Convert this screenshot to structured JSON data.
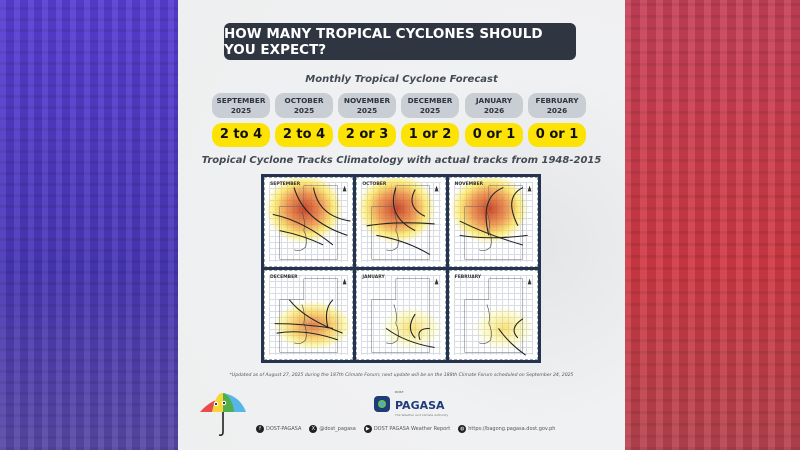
{
  "title": "HOW MANY TROPICAL CYCLONES SHOULD YOU EXPECT?",
  "forecast_heading": "Monthly Tropical Cyclone Forecast",
  "forecast": [
    {
      "month": "SEPTEMBER",
      "year": "2025",
      "value": "2 to 4"
    },
    {
      "month": "OCTOBER",
      "year": "2025",
      "value": "2 to 4"
    },
    {
      "month": "NOVEMBER",
      "year": "2025",
      "value": "2 or 3"
    },
    {
      "month": "DECEMBER",
      "year": "2025",
      "value": "1 or 2"
    },
    {
      "month": "JANUARY",
      "year": "2026",
      "value": "0 or 1"
    },
    {
      "month": "FEBRUARY",
      "year": "2026",
      "value": "0 or 1"
    }
  ],
  "maps_heading": "Tropical Cyclone Tracks Climatology with actual tracks from 1948-2015",
  "maps": [
    {
      "label": "SEPTEMBER",
      "intensity": "high"
    },
    {
      "label": "OCTOBER",
      "intensity": "high"
    },
    {
      "label": "NOVEMBER",
      "intensity": "high"
    },
    {
      "label": "DECEMBER",
      "intensity": "medium"
    },
    {
      "label": "JANUARY",
      "intensity": "low"
    },
    {
      "label": "FEBRUARY",
      "intensity": "low"
    }
  ],
  "footnote": "*Updated as of August 27, 2025 during the 187th Climate Forum; next update will be on the 188th Climate Forum scheduled on September 24, 2025",
  "logo": {
    "top": "DOST",
    "name": "PAGASA",
    "tagline": "The Weather and Climate Authority"
  },
  "socials": [
    {
      "icon": "facebook-icon",
      "glyph": "f",
      "label": "DOST-PAGASA"
    },
    {
      "icon": "x-icon",
      "glyph": "X",
      "label": "@dost_pagasa"
    },
    {
      "icon": "youtube-icon",
      "glyph": "▶",
      "label": "DOST PAGASA Weather Report"
    },
    {
      "icon": "globe-icon",
      "glyph": "◍",
      "label": "https://bagong.pagasa.dost.gov.ph"
    }
  ],
  "colors": {
    "title_bg": "#2f3642",
    "value_pill": "#fde305",
    "month_pill": "#c9cdd4",
    "grid_border": "#253350",
    "left_bg": "#5a3fd6",
    "right_bg": "#d23a44"
  }
}
